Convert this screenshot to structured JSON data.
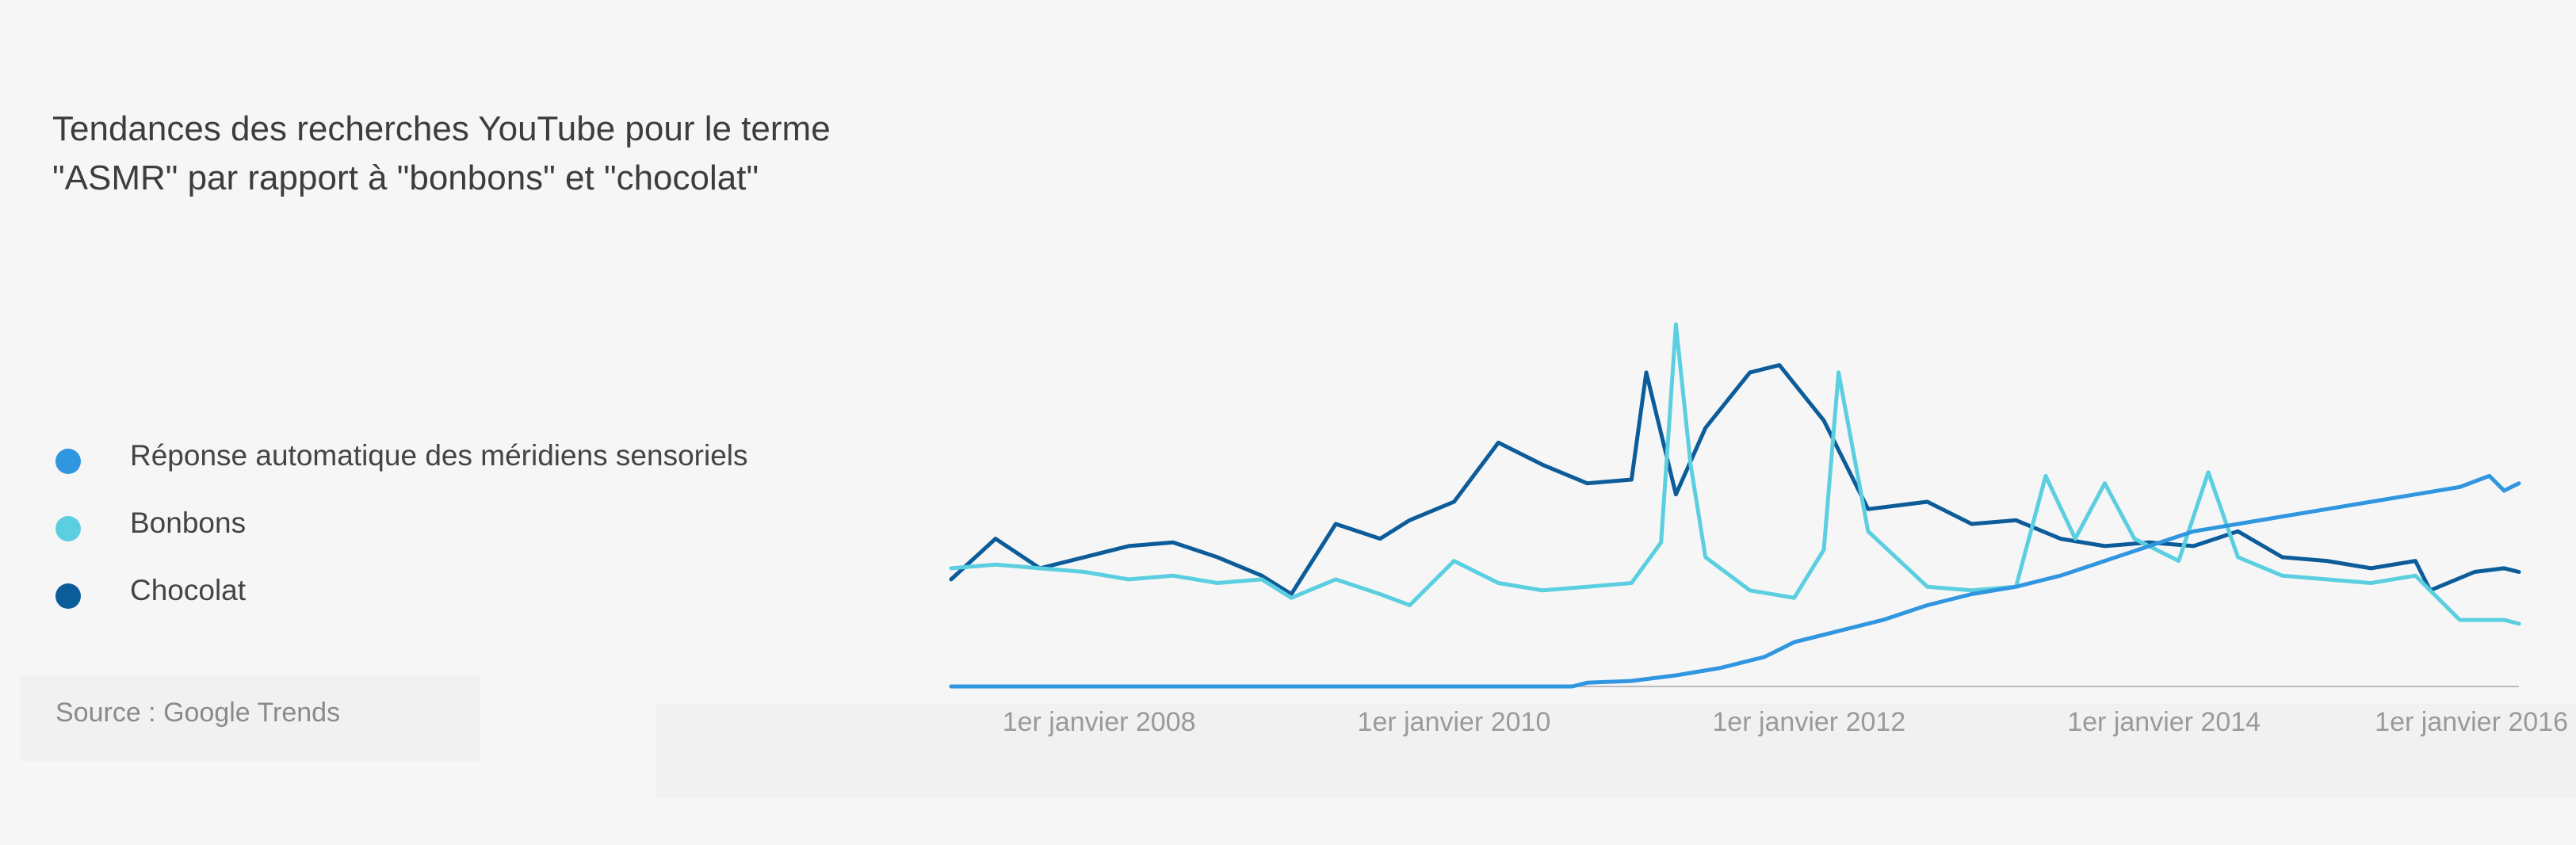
{
  "title_lines": [
    "Tendances des recherches YouTube pour le terme",
    "\"ASMR\" par rapport à \"bonbons\" et \"chocolat\""
  ],
  "source": "Source : Google Trends",
  "colors": {
    "background": "#f6f6f6",
    "asmr": "#3096e0",
    "bonbons": "#5bcfe0",
    "chocolat": "#0d5c9a",
    "axis": "#bbbbbb",
    "tick_text": "#9a9a9a"
  },
  "chart_data": {
    "type": "line",
    "title": "Tendances des recherches YouTube pour le terme \"ASMR\" par rapport à \"bonbons\" et \"chocolat\"",
    "xlabel": "",
    "ylabel": "",
    "x_range": [
      "2007-03",
      "2016-01"
    ],
    "ylim": [
      0,
      100
    ],
    "grid": false,
    "legend_position": "left",
    "x_ticks": [
      {
        "date": "2008-01",
        "label": "1er janvier 2008"
      },
      {
        "date": "2010-01",
        "label": "1er janvier 2010"
      },
      {
        "date": "2012-01",
        "label": "1er janvier 2012"
      },
      {
        "date": "2014-01",
        "label": "1er janvier 2014"
      },
      {
        "date": "2016-01",
        "label": "1er janvier 2016"
      }
    ],
    "series": [
      {
        "name": "Réponse automatique des méridiens sensoriels",
        "color": "#3096e0",
        "points": [
          [
            "2007-03",
            0
          ],
          [
            "2010-09",
            0
          ],
          [
            "2010-10",
            1
          ],
          [
            "2011-01",
            1.5
          ],
          [
            "2011-04",
            3
          ],
          [
            "2011-07",
            5
          ],
          [
            "2011-10",
            8
          ],
          [
            "2011-12",
            12
          ],
          [
            "2012-03",
            15
          ],
          [
            "2012-06",
            18
          ],
          [
            "2012-09",
            22
          ],
          [
            "2012-12",
            25
          ],
          [
            "2013-03",
            27
          ],
          [
            "2013-06",
            30
          ],
          [
            "2013-09",
            34
          ],
          [
            "2013-12",
            38
          ],
          [
            "2014-03",
            42
          ],
          [
            "2014-06",
            44
          ],
          [
            "2014-09",
            46
          ],
          [
            "2014-12",
            48
          ],
          [
            "2015-03",
            50
          ],
          [
            "2015-06",
            52
          ],
          [
            "2015-09",
            54
          ],
          [
            "2015-11",
            57
          ],
          [
            "2015-12",
            53
          ],
          [
            "2016-01",
            55
          ]
        ]
      },
      {
        "name": "Bonbons",
        "color": "#5bcfe0",
        "points": [
          [
            "2007-03",
            32
          ],
          [
            "2007-06",
            33
          ],
          [
            "2007-09",
            32
          ],
          [
            "2007-12",
            31
          ],
          [
            "2008-03",
            29
          ],
          [
            "2008-06",
            30
          ],
          [
            "2008-09",
            28
          ],
          [
            "2008-12",
            29
          ],
          [
            "2009-02",
            24
          ],
          [
            "2009-05",
            29
          ],
          [
            "2009-08",
            25
          ],
          [
            "2009-10",
            22
          ],
          [
            "2010-01",
            34
          ],
          [
            "2010-04",
            28
          ],
          [
            "2010-07",
            26
          ],
          [
            "2010-10",
            27
          ],
          [
            "2011-01",
            28
          ],
          [
            "2011-03",
            39
          ],
          [
            "2011-04",
            98
          ],
          [
            "2011-05",
            60
          ],
          [
            "2011-06",
            35
          ],
          [
            "2011-09",
            26
          ],
          [
            "2011-12",
            24
          ],
          [
            "2012-02",
            37
          ],
          [
            "2012-03",
            85
          ],
          [
            "2012-05",
            42
          ],
          [
            "2012-09",
            27
          ],
          [
            "2012-12",
            26
          ],
          [
            "2013-03",
            27
          ],
          [
            "2013-05",
            57
          ],
          [
            "2013-07",
            40
          ],
          [
            "2013-09",
            55
          ],
          [
            "2013-11",
            40
          ],
          [
            "2014-02",
            34
          ],
          [
            "2014-04",
            58
          ],
          [
            "2014-06",
            35
          ],
          [
            "2014-09",
            30
          ],
          [
            "2014-12",
            29
          ],
          [
            "2015-03",
            28
          ],
          [
            "2015-06",
            30
          ],
          [
            "2015-09",
            18
          ],
          [
            "2015-12",
            18
          ],
          [
            "2016-01",
            17
          ]
        ]
      },
      {
        "name": "Chocolat",
        "color": "#0d5c9a",
        "points": [
          [
            "2007-03",
            29
          ],
          [
            "2007-06",
            40
          ],
          [
            "2007-09",
            32
          ],
          [
            "2007-12",
            35
          ],
          [
            "2008-03",
            38
          ],
          [
            "2008-06",
            39
          ],
          [
            "2008-09",
            35
          ],
          [
            "2008-12",
            30
          ],
          [
            "2009-02",
            25
          ],
          [
            "2009-05",
            44
          ],
          [
            "2009-08",
            40
          ],
          [
            "2009-10",
            45
          ],
          [
            "2010-01",
            50
          ],
          [
            "2010-04",
            66
          ],
          [
            "2010-07",
            60
          ],
          [
            "2010-10",
            55
          ],
          [
            "2011-01",
            56
          ],
          [
            "2011-02",
            85
          ],
          [
            "2011-04",
            52
          ],
          [
            "2011-06",
            70
          ],
          [
            "2011-09",
            85
          ],
          [
            "2011-11",
            87
          ],
          [
            "2012-02",
            72
          ],
          [
            "2012-05",
            48
          ],
          [
            "2012-09",
            50
          ],
          [
            "2012-12",
            44
          ],
          [
            "2013-03",
            45
          ],
          [
            "2013-06",
            40
          ],
          [
            "2013-09",
            38
          ],
          [
            "2013-12",
            39
          ],
          [
            "2014-03",
            38
          ],
          [
            "2014-06",
            42
          ],
          [
            "2014-09",
            35
          ],
          [
            "2014-12",
            34
          ],
          [
            "2015-03",
            32
          ],
          [
            "2015-06",
            34
          ],
          [
            "2015-07",
            26
          ],
          [
            "2015-10",
            31
          ],
          [
            "2015-12",
            32
          ],
          [
            "2016-01",
            31
          ]
        ]
      }
    ]
  }
}
